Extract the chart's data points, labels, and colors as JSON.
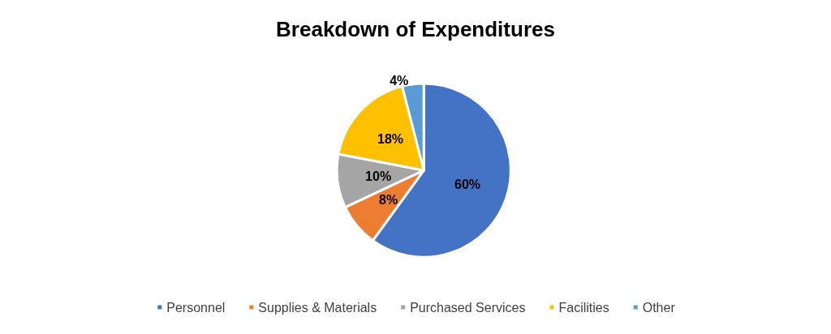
{
  "chart_data": {
    "type": "pie",
    "title": "Breakdown of Expenditures",
    "categories": [
      "Personnel",
      "Supplies & Materials",
      "Purchased Services",
      "Facilities",
      "Other"
    ],
    "values": [
      60,
      8,
      10,
      18,
      4
    ],
    "colors": [
      "#4472c4",
      "#ed7d31",
      "#a5a5a5",
      "#ffc000",
      "#5b9bd5"
    ],
    "value_labels": [
      "60%",
      "8%",
      "10%",
      "18%",
      "4%"
    ],
    "legend": "bottom"
  }
}
